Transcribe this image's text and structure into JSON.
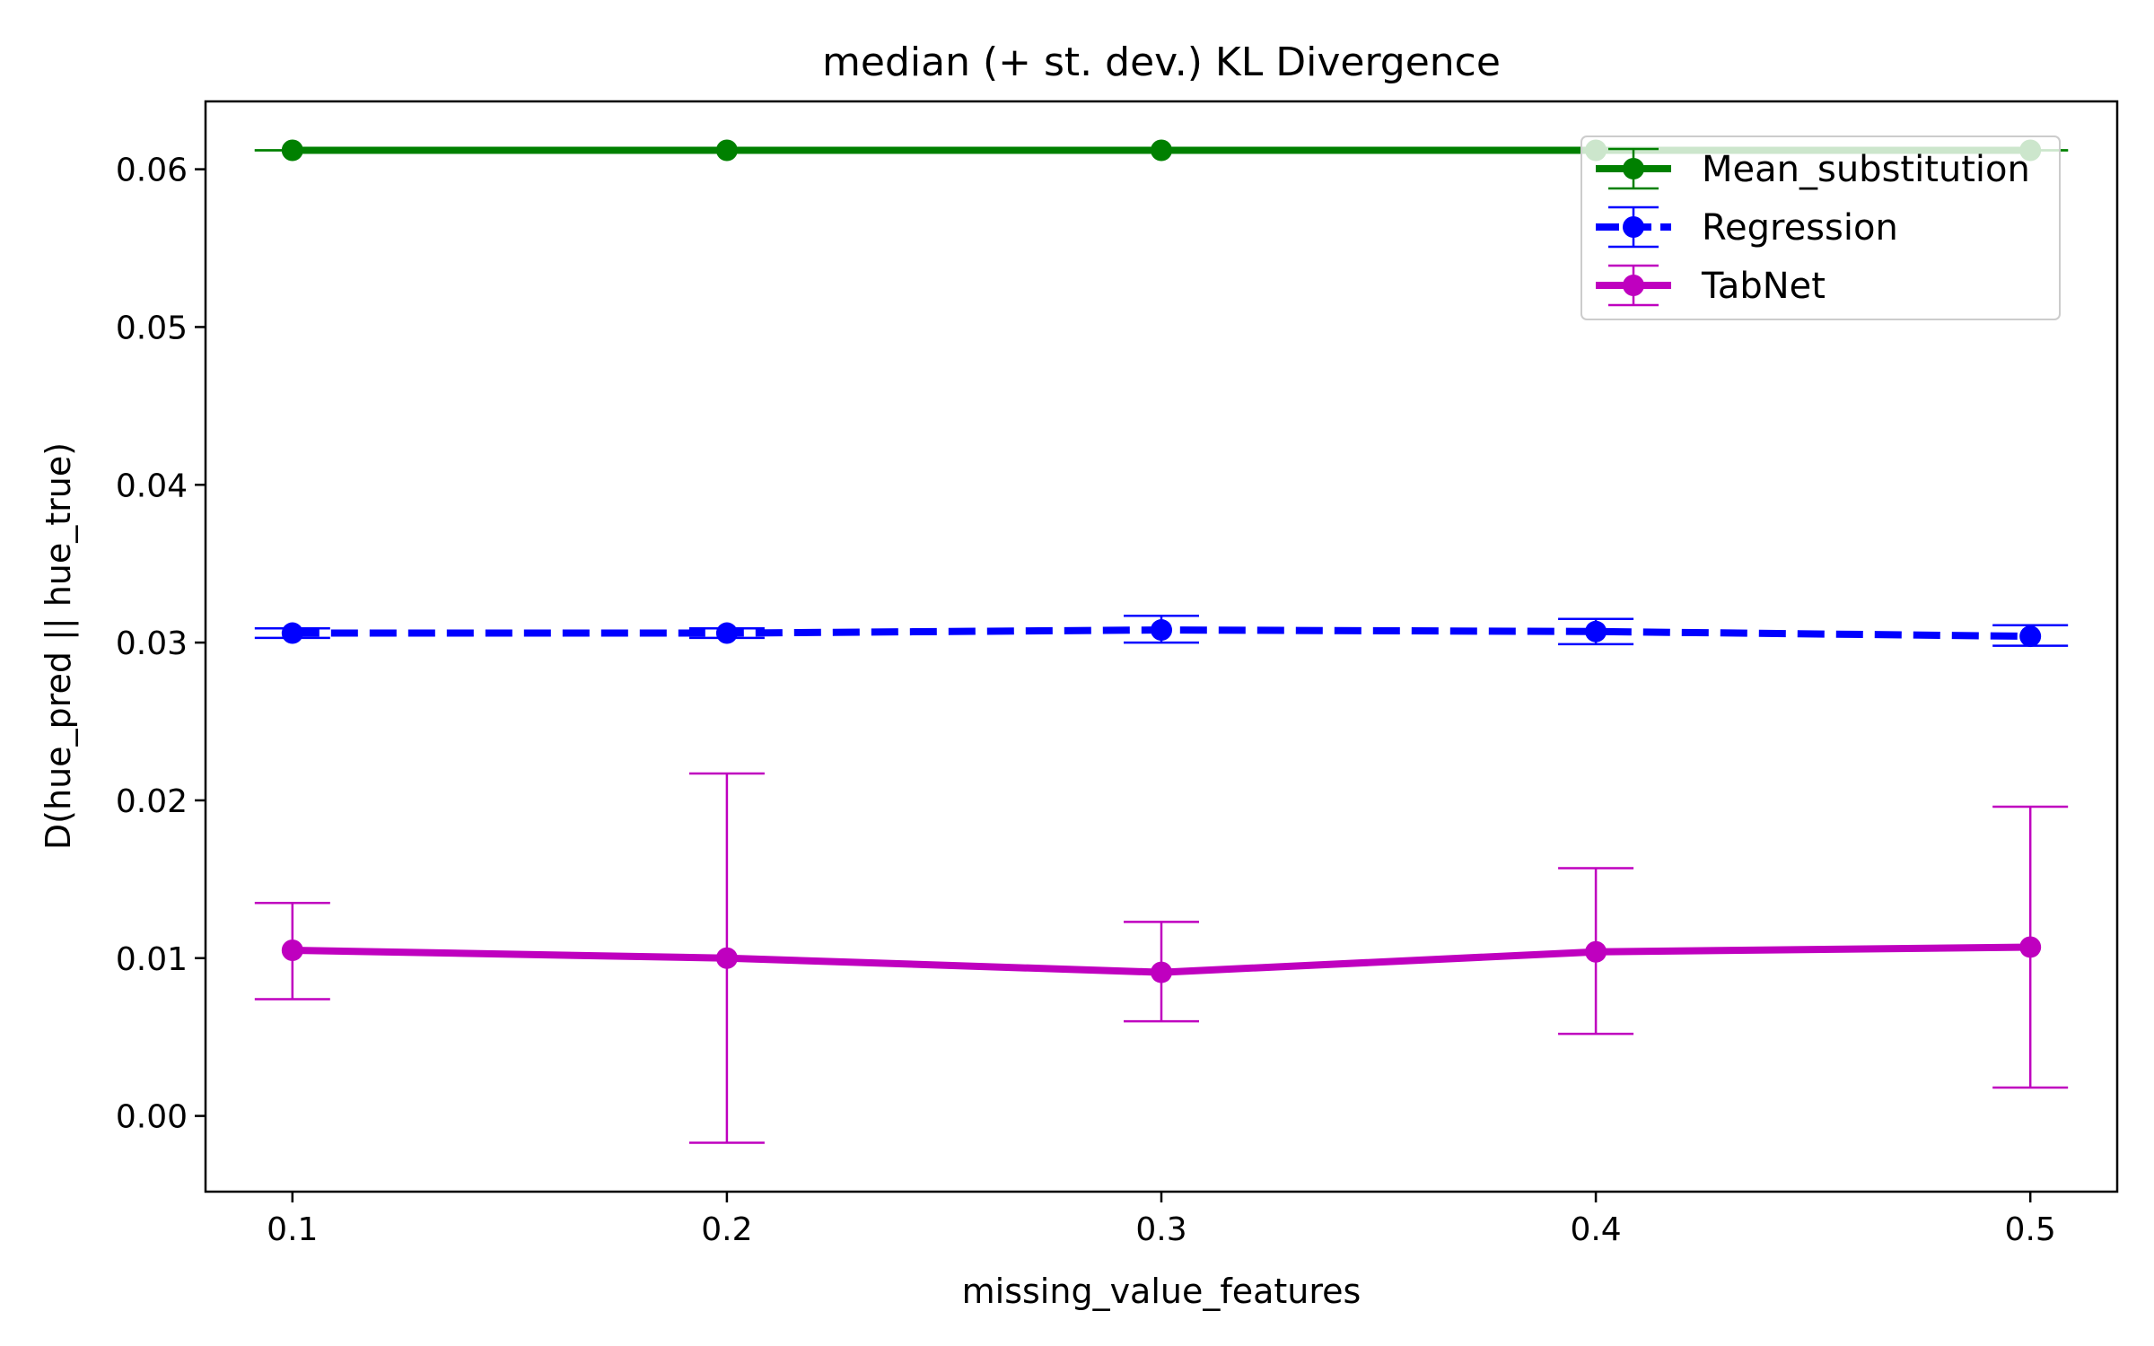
{
  "chart_data": {
    "type": "line",
    "title": "median (+ st. dev.) KL Divergence",
    "xlabel": "missing_value_features",
    "ylabel": "D(hue_pred || hue_true)",
    "x": [
      0.1,
      0.2,
      0.3,
      0.4,
      0.5
    ],
    "x_tick_labels": [
      "0.1",
      "0.2",
      "0.3",
      "0.4",
      "0.5"
    ],
    "y_ticks": [
      0.0,
      0.01,
      0.02,
      0.03,
      0.04,
      0.05,
      0.06
    ],
    "y_tick_labels": [
      "0.00",
      "0.01",
      "0.02",
      "0.03",
      "0.04",
      "0.05",
      "0.06"
    ],
    "xlim": [
      0.08,
      0.52
    ],
    "ylim": [
      -0.0048,
      0.0643
    ],
    "grid": false,
    "legend_position": "top-right",
    "series": [
      {
        "name": "Mean_substitution",
        "color": "#008000",
        "line_style": "solid",
        "values": [
          0.0612,
          0.0612,
          0.0612,
          0.0612,
          0.0612
        ],
        "err_low": [
          0.0612,
          0.0612,
          0.0612,
          0.0612,
          0.0612
        ],
        "err_high": [
          0.0612,
          0.0612,
          0.0612,
          0.0612,
          0.0612
        ]
      },
      {
        "name": "Regression",
        "color": "#0000ff",
        "line_style": "dashed",
        "values": [
          0.0306,
          0.0306,
          0.0308,
          0.0307,
          0.0304
        ],
        "err_low": [
          0.0303,
          0.0303,
          0.03,
          0.0299,
          0.0298
        ],
        "err_high": [
          0.0309,
          0.0309,
          0.0317,
          0.0315,
          0.0311
        ]
      },
      {
        "name": "TabNet",
        "color": "#bf00bf",
        "line_style": "solid",
        "values": [
          0.0105,
          0.01,
          0.0091,
          0.0104,
          0.0107
        ],
        "err_low": [
          0.0074,
          -0.0017,
          0.006,
          0.0052,
          0.0018
        ],
        "err_high": [
          0.0135,
          0.0217,
          0.0123,
          0.0157,
          0.0196
        ]
      }
    ]
  }
}
